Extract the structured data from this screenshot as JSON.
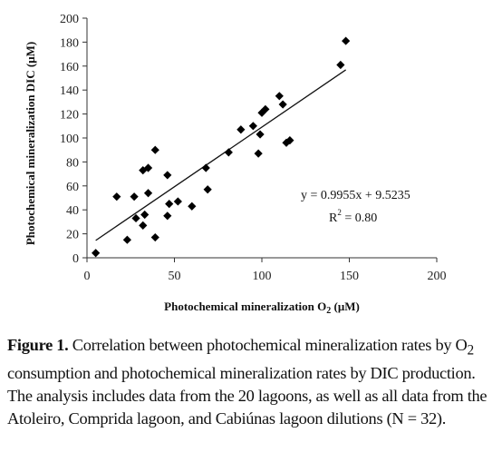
{
  "chart_data": {
    "type": "scatter",
    "xlabel": "Photochemical mineralization O",
    "xlabel_sub": "2",
    "xlabel_unit": " (μM)",
    "ylabel": "Photochemical mineralization DIC (μM)",
    "xlim": [
      0,
      200
    ],
    "ylim": [
      0,
      200
    ],
    "xticks": [
      "0",
      "50",
      "100",
      "150",
      "200"
    ],
    "yticks": [
      "0",
      "20",
      "40",
      "60",
      "80",
      "100",
      "120",
      "140",
      "160",
      "180",
      "200"
    ],
    "grid": false,
    "marker": "diamond",
    "points": [
      {
        "x": 5,
        "y": 4
      },
      {
        "x": 17,
        "y": 51
      },
      {
        "x": 23,
        "y": 15
      },
      {
        "x": 27,
        "y": 51
      },
      {
        "x": 28,
        "y": 33
      },
      {
        "x": 32,
        "y": 73
      },
      {
        "x": 32,
        "y": 27
      },
      {
        "x": 33,
        "y": 36
      },
      {
        "x": 35,
        "y": 75
      },
      {
        "x": 35,
        "y": 54
      },
      {
        "x": 39,
        "y": 90
      },
      {
        "x": 39,
        "y": 17
      },
      {
        "x": 46,
        "y": 69
      },
      {
        "x": 46,
        "y": 35
      },
      {
        "x": 47,
        "y": 45
      },
      {
        "x": 52,
        "y": 47
      },
      {
        "x": 60,
        "y": 43
      },
      {
        "x": 68,
        "y": 75
      },
      {
        "x": 69,
        "y": 57
      },
      {
        "x": 81,
        "y": 88
      },
      {
        "x": 88,
        "y": 107
      },
      {
        "x": 95,
        "y": 110
      },
      {
        "x": 98,
        "y": 87
      },
      {
        "x": 99,
        "y": 103
      },
      {
        "x": 100,
        "y": 121
      },
      {
        "x": 102,
        "y": 124
      },
      {
        "x": 110,
        "y": 135
      },
      {
        "x": 112,
        "y": 128
      },
      {
        "x": 114,
        "y": 96
      },
      {
        "x": 116,
        "y": 98
      },
      {
        "x": 145,
        "y": 161
      },
      {
        "x": 148,
        "y": 181
      }
    ],
    "trendline": {
      "slope": 0.9955,
      "intercept": 9.5235,
      "x_range": [
        5,
        148
      ]
    },
    "equation_label": "y = 0.9955x + 9.5235",
    "r2_label_prefix": "R",
    "r2_label_sup": "2",
    "r2_label_value": " = 0.80"
  },
  "caption": {
    "label": "Figure 1.",
    "text_1": " Correlation between photochemical mineralization rates by O",
    "text_sub": "2",
    "text_2": " consumption and photochemical mineralization rates by DIC production. The analysis includes data from the 20 lagoons, as well as all data from the Atoleiro, Comprida lagoon, and Cabiúnas lagoon dilutions (N = 32)."
  }
}
